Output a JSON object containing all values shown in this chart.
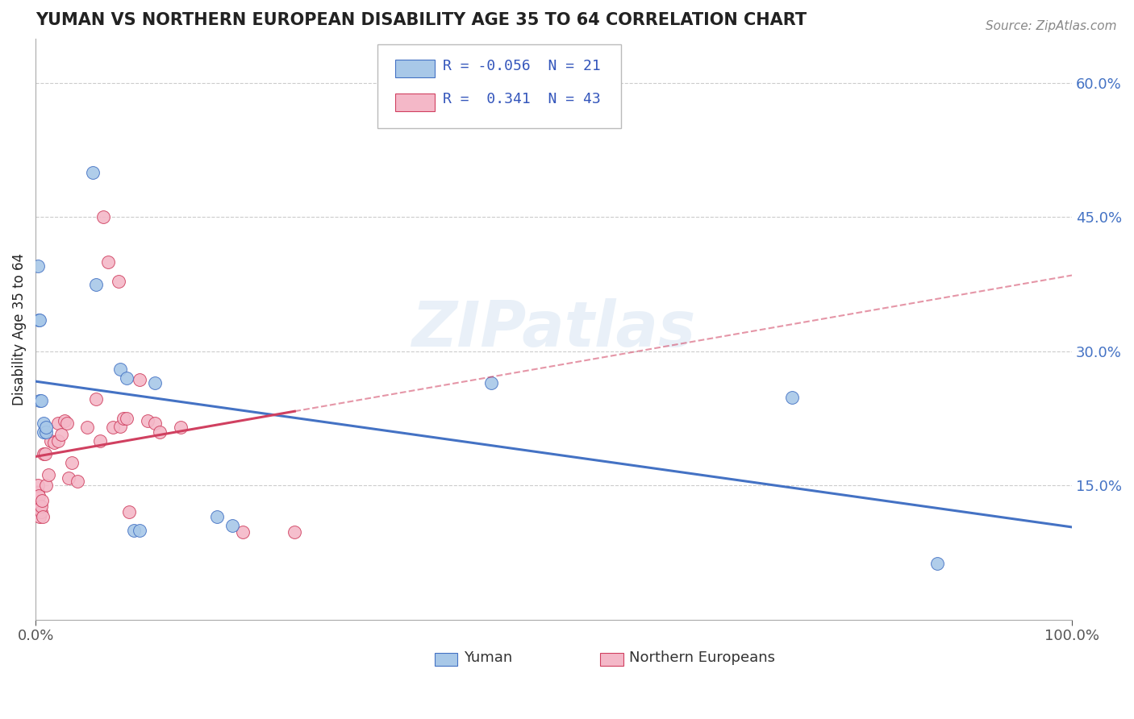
{
  "title": "YUMAN VS NORTHERN EUROPEAN DISABILITY AGE 35 TO 64 CORRELATION CHART",
  "source": "Source: ZipAtlas.com",
  "ylabel": "Disability Age 35 to 64",
  "xlim": [
    0.0,
    1.0
  ],
  "ylim": [
    0.0,
    0.65
  ],
  "yticks": [
    0.15,
    0.3,
    0.45,
    0.6
  ],
  "yticklabels": [
    "15.0%",
    "30.0%",
    "45.0%",
    "60.0%"
  ],
  "xticklabels": [
    "0.0%",
    "100.0%"
  ],
  "legend_r_blue": "-0.056",
  "legend_n_blue": "21",
  "legend_r_pink": "0.341",
  "legend_n_pink": "43",
  "blue_color": "#A8C8E8",
  "pink_color": "#F4B8C8",
  "line_blue_color": "#4472C4",
  "line_pink_color": "#D04060",
  "watermark_text": "ZIPatlas",
  "background_color": "#FFFFFF",
  "blue_points_x": [
    0.002,
    0.003,
    0.004,
    0.004,
    0.005,
    0.008,
    0.008,
    0.01,
    0.01,
    0.055,
    0.058,
    0.082,
    0.088,
    0.095,
    0.1,
    0.115,
    0.175,
    0.19,
    0.44,
    0.73,
    0.87
  ],
  "blue_points_y": [
    0.395,
    0.335,
    0.335,
    0.245,
    0.245,
    0.21,
    0.22,
    0.21,
    0.215,
    0.5,
    0.375,
    0.28,
    0.27,
    0.1,
    0.1,
    0.265,
    0.115,
    0.105,
    0.265,
    0.248,
    0.063
  ],
  "pink_points_x": [
    0.002,
    0.002,
    0.002,
    0.003,
    0.003,
    0.003,
    0.004,
    0.005,
    0.005,
    0.006,
    0.007,
    0.008,
    0.009,
    0.01,
    0.012,
    0.015,
    0.018,
    0.022,
    0.022,
    0.025,
    0.028,
    0.03,
    0.032,
    0.035,
    0.04,
    0.05,
    0.058,
    0.062,
    0.065,
    0.07,
    0.075,
    0.08,
    0.082,
    0.085,
    0.088,
    0.09,
    0.1,
    0.108,
    0.115,
    0.12,
    0.14,
    0.2,
    0.25
  ],
  "pink_points_y": [
    0.13,
    0.142,
    0.15,
    0.122,
    0.128,
    0.138,
    0.115,
    0.12,
    0.127,
    0.133,
    0.115,
    0.185,
    0.185,
    0.15,
    0.162,
    0.2,
    0.198,
    0.22,
    0.2,
    0.207,
    0.222,
    0.22,
    0.158,
    0.175,
    0.155,
    0.215,
    0.247,
    0.2,
    0.45,
    0.4,
    0.215,
    0.378,
    0.216,
    0.225,
    0.225,
    0.12,
    0.268,
    0.222,
    0.22,
    0.21,
    0.215,
    0.098,
    0.098
  ],
  "grid_color": "#CCCCCC",
  "title_color": "#222222",
  "tick_color": "#555555",
  "right_tick_color": "#4472C4"
}
